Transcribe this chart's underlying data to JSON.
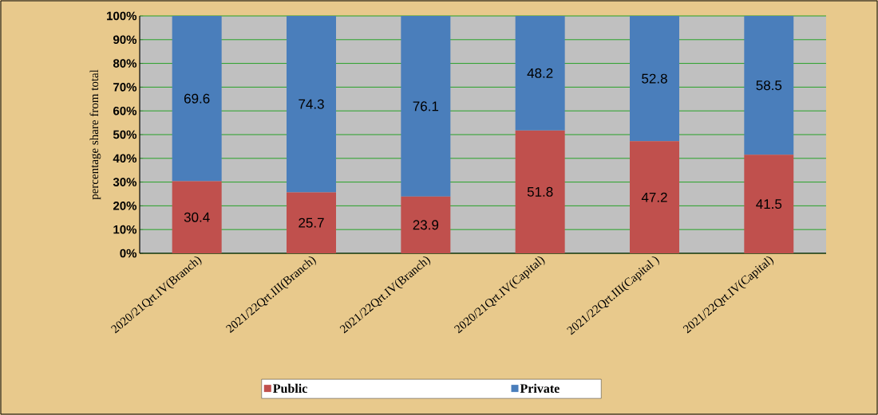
{
  "chart_data": {
    "type": "bar",
    "stacked": true,
    "ylabel": "percentage share from total",
    "categories": [
      "2020/21Qrt.IV(Branch)",
      "2021/22Qrt.III(Branch)",
      "2021/22Qrt.IV(Branch)",
      "2020/21Qrt.IV(Capital)",
      "2021/22Qrt.III(Capital )",
      "2021/22Qrt.IV(Capital)"
    ],
    "series": [
      {
        "name": "Public",
        "color": "#c0504d",
        "values": [
          30.4,
          25.7,
          23.9,
          51.8,
          47.2,
          41.5
        ]
      },
      {
        "name": "Private",
        "color": "#4a7ebb",
        "values": [
          69.6,
          74.3,
          76.1,
          48.2,
          52.8,
          58.5
        ]
      }
    ],
    "ylim": [
      0,
      100
    ],
    "yticks": [
      {
        "value": 0,
        "label": "0%"
      },
      {
        "value": 10,
        "label": "10%"
      },
      {
        "value": 20,
        "label": "20%"
      },
      {
        "value": 30,
        "label": "30%"
      },
      {
        "value": 40,
        "label": "40%"
      },
      {
        "value": 50,
        "label": "50%"
      },
      {
        "value": 60,
        "label": "60%"
      },
      {
        "value": 70,
        "label": "70%"
      },
      {
        "value": 80,
        "label": "80%"
      },
      {
        "value": 90,
        "label": "90%"
      },
      {
        "value": 100,
        "label": "100%"
      }
    ],
    "grid": "y",
    "legend": "bottom",
    "data_labels": true
  }
}
